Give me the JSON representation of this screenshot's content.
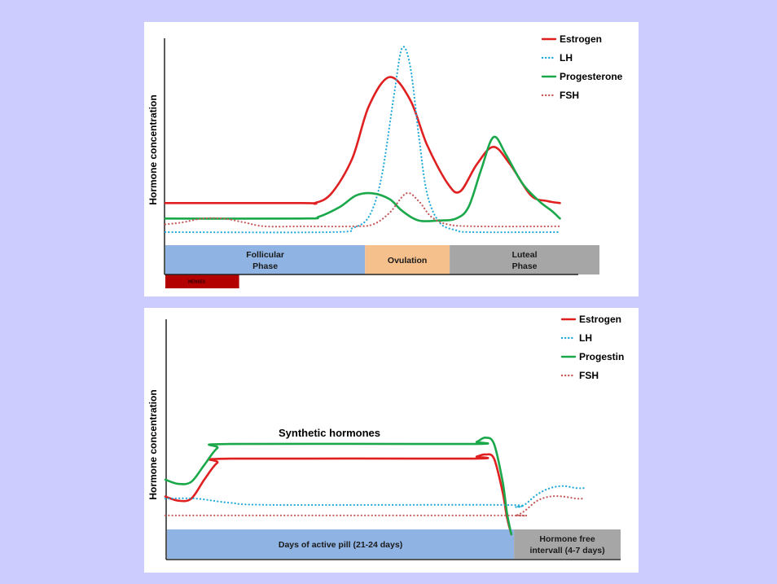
{
  "background_color": "#ccccff",
  "chart_data": [
    {
      "type": "line",
      "ylabel": "Hormone concentration",
      "xlabel": "",
      "x_range": [
        0,
        100
      ],
      "y_range": [
        0,
        100
      ],
      "legend_position": "top-right",
      "series": [
        {
          "name": "Estrogen",
          "color": "#e02020",
          "style": "solid",
          "points": [
            [
              0,
              15
            ],
            [
              33,
              15
            ],
            [
              36,
              15
            ],
            [
              40,
              20
            ],
            [
              45,
              38
            ],
            [
              49,
              65
            ],
            [
              54,
              80
            ],
            [
              59,
              68
            ],
            [
              63,
              45
            ],
            [
              68,
              25
            ],
            [
              71,
              21
            ],
            [
              75,
              35
            ],
            [
              79,
              44
            ],
            [
              83,
              35
            ],
            [
              88,
              19
            ],
            [
              92,
              16
            ],
            [
              95,
              15
            ]
          ]
        },
        {
          "name": "LH",
          "color": "#1fa9d8",
          "style": "dotted",
          "points": [
            [
              0,
              0
            ],
            [
              40,
              0
            ],
            [
              45,
              2
            ],
            [
              49,
              8
            ],
            [
              52,
              28
            ],
            [
              55,
              70
            ],
            [
              57,
              95
            ],
            [
              59,
              85
            ],
            [
              61,
              50
            ],
            [
              63,
              20
            ],
            [
              66,
              5
            ],
            [
              70,
              1
            ],
            [
              74,
              0
            ],
            [
              95,
              0
            ]
          ]
        },
        {
          "name": "Progesterone",
          "color": "#1aa84a",
          "style": "solid",
          "points": [
            [
              0,
              7
            ],
            [
              33,
              7
            ],
            [
              37,
              8
            ],
            [
              42,
              13
            ],
            [
              46,
              19
            ],
            [
              50,
              20
            ],
            [
              54,
              17
            ],
            [
              57,
              11
            ],
            [
              61,
              6
            ],
            [
              66,
              6
            ],
            [
              70,
              7
            ],
            [
              73,
              13
            ],
            [
              76,
              32
            ],
            [
              79,
              49
            ],
            [
              82,
              40
            ],
            [
              86,
              25
            ],
            [
              90,
              16
            ],
            [
              93,
              11
            ],
            [
              95,
              7
            ]
          ]
        },
        {
          "name": "FSH",
          "color": "#c55a5a",
          "style": "dotted",
          "points": [
            [
              0,
              4
            ],
            [
              4,
              5
            ],
            [
              9,
              7
            ],
            [
              14,
              7
            ],
            [
              19,
              5
            ],
            [
              24,
              3
            ],
            [
              33,
              3
            ],
            [
              45,
              3
            ],
            [
              50,
              4
            ],
            [
              54,
              10
            ],
            [
              58,
              20
            ],
            [
              61,
              16
            ],
            [
              64,
              8
            ],
            [
              68,
              4
            ],
            [
              75,
              3
            ],
            [
              95,
              3
            ]
          ]
        }
      ],
      "phases": [
        {
          "label_line1": "Follicular",
          "label_line2": "Phase",
          "start": 0,
          "end": 46,
          "color": "#8fb3e3"
        },
        {
          "label_line1": "Ovulation",
          "label_line2": "",
          "start": 46,
          "end": 65.5,
          "color": "#f5c08c"
        },
        {
          "label_line1": "Luteal",
          "label_line2": "Phase",
          "start": 65.5,
          "end": 100,
          "color": "#a6a6a6"
        }
      ],
      "menses_bar": {
        "label": "MENSES",
        "start": 0,
        "end": 17,
        "color": "#b30000"
      }
    },
    {
      "type": "line",
      "ylabel": "Hormone concentration",
      "xlabel": "",
      "x_range": [
        0,
        100
      ],
      "y_range": [
        0,
        100
      ],
      "legend_position": "top-right",
      "annotation": "Synthetic hormones",
      "series": [
        {
          "name": "Estrogen",
          "color": "#e02020",
          "style": "solid",
          "points": [
            [
              0,
              18
            ],
            [
              3,
              16
            ],
            [
              6,
              17
            ],
            [
              9,
              26
            ],
            [
              12,
              34
            ],
            [
              15,
              36
            ],
            [
              70,
              36
            ],
            [
              72,
              37
            ],
            [
              74,
              38
            ],
            [
              76,
              36
            ],
            [
              78,
              20
            ],
            [
              79,
              8
            ],
            [
              80,
              0
            ]
          ]
        },
        {
          "name": "LH",
          "color": "#1fa9d8",
          "style": "dotted",
          "points": [
            [
              0,
              17
            ],
            [
              7,
              17
            ],
            [
              15,
              15
            ],
            [
              25,
              14
            ],
            [
              78,
              14
            ],
            [
              81,
              13
            ],
            [
              83,
              14
            ],
            [
              86,
              19
            ],
            [
              89,
              22
            ],
            [
              92,
              23
            ],
            [
              95,
              22
            ],
            [
              97,
              22
            ]
          ]
        },
        {
          "name": "Progestin",
          "color": "#1aa84a",
          "style": "solid",
          "points": [
            [
              0,
              26
            ],
            [
              3,
              24
            ],
            [
              6,
              25
            ],
            [
              9,
              33
            ],
            [
              12,
              41
            ],
            [
              15,
              43
            ],
            [
              70,
              43
            ],
            [
              72,
              44
            ],
            [
              74,
              46
            ],
            [
              76,
              43
            ],
            [
              78,
              25
            ],
            [
              79,
              10
            ],
            [
              80,
              0
            ]
          ]
        },
        {
          "name": "FSH",
          "color": "#c55a5a",
          "style": "dotted",
          "points": [
            [
              0,
              9
            ],
            [
              15,
              9
            ],
            [
              78,
              9
            ],
            [
              81,
              9
            ],
            [
              83,
              11
            ],
            [
              86,
              16
            ],
            [
              89,
              18
            ],
            [
              92,
              18
            ],
            [
              95,
              17
            ],
            [
              97,
              17
            ]
          ]
        }
      ],
      "phases": [
        {
          "label_line1": "Days of active pill (21-24 days)",
          "label_line2": "",
          "start": 0,
          "end": 76.5,
          "color": "#8fb3e3"
        },
        {
          "label_line1": "Hormone free",
          "label_line2": "intervall (4-7 days)",
          "start": 76.5,
          "end": 100,
          "color": "#a6a6a6"
        }
      ]
    }
  ]
}
